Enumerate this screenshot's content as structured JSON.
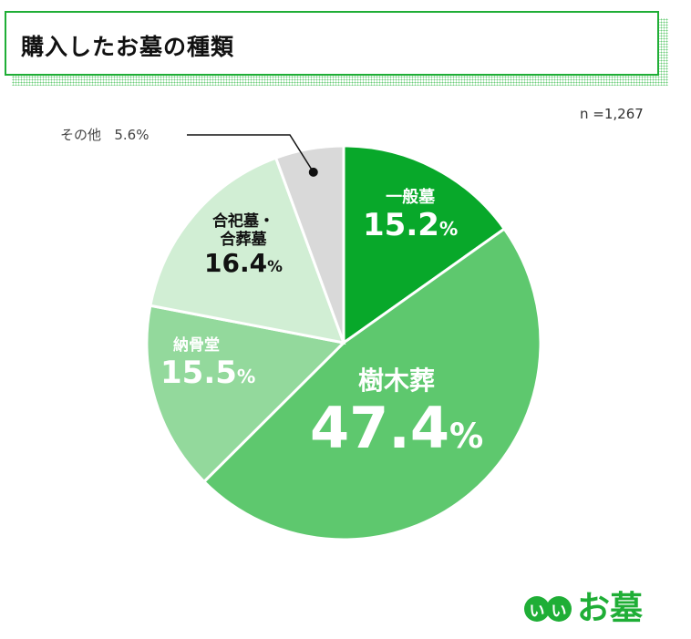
{
  "title": "購入したお墓の種類",
  "sample": "n =1,267",
  "logo": {
    "dot1": "い",
    "dot2": "い",
    "text": "お墓"
  },
  "chart_data": {
    "type": "pie",
    "title": "購入したお墓の種類",
    "start": "top",
    "direction": "clockwise",
    "slices": [
      {
        "label": "一般墓",
        "value": 15.2,
        "display": "15.2",
        "color": "#08a82a"
      },
      {
        "label": "樹木葬",
        "value": 47.4,
        "display": "47.4",
        "color": "#5ec86e"
      },
      {
        "label": "納骨堂",
        "value": 15.5,
        "display": "15.5",
        "color": "#93d99c"
      },
      {
        "label": "合祀墓・合葬墓",
        "label_line1": "合祀墓・",
        "label_line2": "合葬墓",
        "value": 16.4,
        "display": "16.4",
        "color": "#d1eed4"
      },
      {
        "label": "その他",
        "value": 5.6,
        "display": "5.6",
        "color": "#d9d9d9"
      }
    ],
    "unit": "%"
  }
}
